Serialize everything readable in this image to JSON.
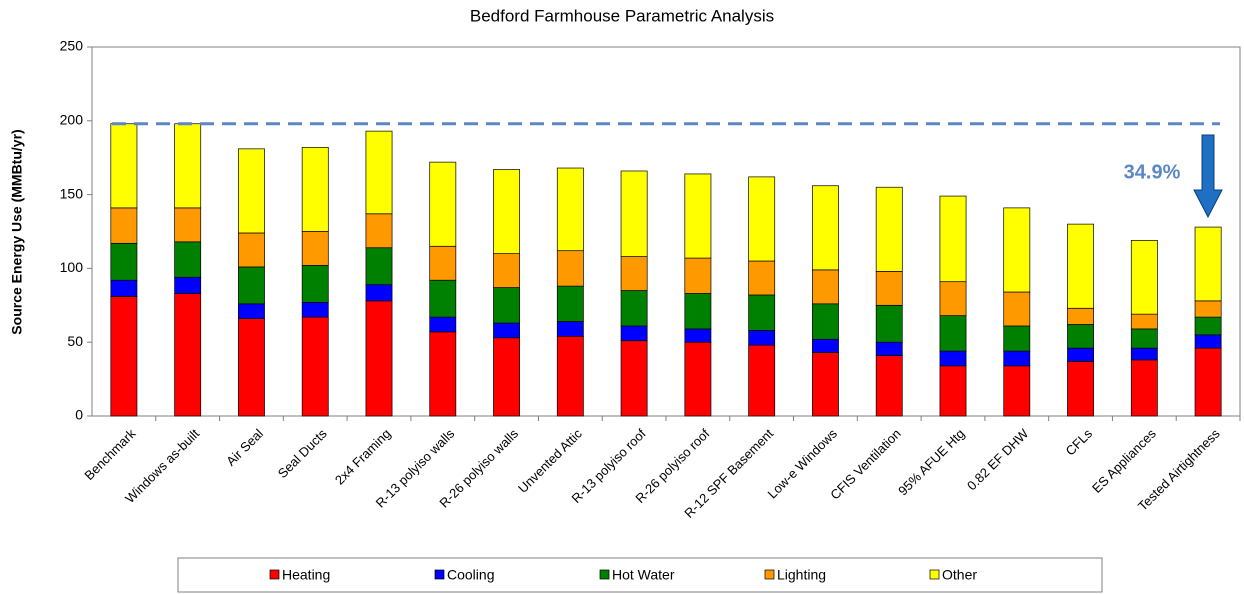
{
  "chart_data": {
    "type": "stacked_bar",
    "title": "Bedford Farmhouse Parametric Analysis",
    "y_label": "Source Energy Use (MMBtu/yr)",
    "categories": [
      "Benchmark",
      "Windows as-built",
      "Air Seal",
      "Seal Ducts",
      "2x4 Framing",
      "R-13 polyiso walls",
      "R-26 polyiso walls",
      "Unvented Attic",
      "R-13 polyiso roof",
      "R-26 polyiso roof",
      "R-12 SPF Basement",
      "Low-e Windows",
      "CFIS Ventilation",
      "95% AFUE Htg",
      "0.82 EF DHW",
      "CFLs",
      "ES Appliances",
      "Tested Airtightness"
    ],
    "series": [
      {
        "name": "Heating",
        "color": "#ff0000",
        "values": [
          81,
          83,
          66,
          67,
          78,
          57,
          53,
          54,
          51,
          50,
          48,
          43,
          41,
          34,
          34,
          37,
          38,
          46
        ]
      },
      {
        "name": "Cooling",
        "color": "#0000ff",
        "values": [
          11,
          11,
          10,
          10,
          11,
          10,
          10,
          10,
          10,
          9,
          10,
          9,
          9,
          10,
          10,
          9,
          8,
          9
        ]
      },
      {
        "name": "Hot Water",
        "color": "#008000",
        "values": [
          25,
          24,
          25,
          25,
          25,
          25,
          24,
          24,
          24,
          24,
          24,
          24,
          25,
          24,
          17,
          16,
          13,
          12
        ]
      },
      {
        "name": "Lighting",
        "color": "#ff9900",
        "values": [
          24,
          23,
          23,
          23,
          23,
          23,
          23,
          24,
          23,
          24,
          23,
          23,
          23,
          23,
          23,
          11,
          10,
          11
        ]
      },
      {
        "name": "Other",
        "color": "#ffff00",
        "values": [
          57,
          57,
          57,
          57,
          56,
          57,
          57,
          56,
          58,
          57,
          57,
          57,
          57,
          58,
          57,
          57,
          50,
          50
        ]
      }
    ],
    "ylim": [
      0,
      250
    ],
    "yticks": [
      0,
      50,
      100,
      150,
      200,
      250
    ],
    "reference_line": 198,
    "annotation": "34.9%",
    "legend": "bottom"
  }
}
